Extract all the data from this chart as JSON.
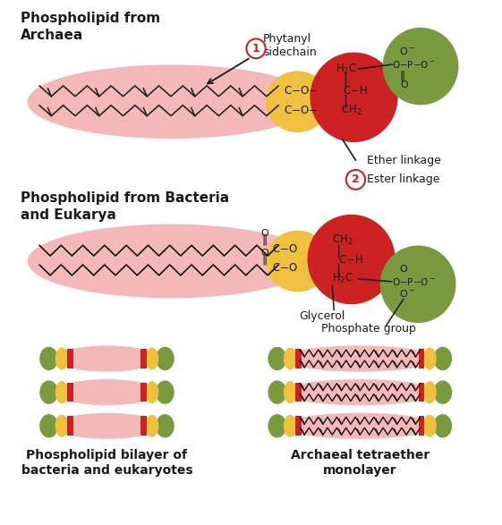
{
  "bg_color": "#ffffff",
  "pink": "#f5b8b8",
  "yellow": "#f0c040",
  "red": "#cc2222",
  "green": "#7a9a40",
  "black": "#1a1a1a",
  "red_circle_edge": "#cc2222",
  "label_archaea": "Phospholipid from\nArchaea",
  "label_bacteria": "Phospholipid from Bacteria\nand Eukarya",
  "label_phytanyl": "Phytanyl\nsidechain",
  "label_ether": "Ether linkage",
  "label_ester": "Ester linkage",
  "label_glycerol": "Glycerol",
  "label_phosphate": "Phosphate group",
  "label_bilayer": "Phospholipid bilayer of\nbacteria and eukaryotes",
  "label_monolayer": "Archaeal tetraether\nmonolayer"
}
